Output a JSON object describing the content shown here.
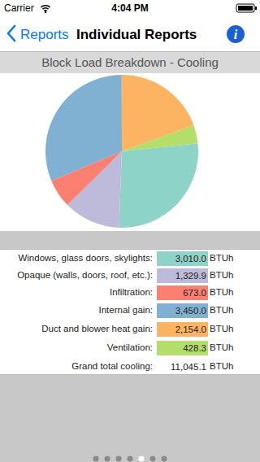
{
  "status_bar": {
    "carrier": "Carrier",
    "time": "4:04 PM"
  },
  "nav": {
    "back": "Reports",
    "title": "Individual Reports",
    "info": "i"
  },
  "chart_data": {
    "type": "pie",
    "title": "Block Load Breakdown - Cooling",
    "categories": [
      "Windows, glass doors, skylights:",
      "Opaque (walls, doors, roof, etc.):",
      "Infiltration:",
      "Internal gain:",
      "Duct and blower heat gain:",
      "Ventilation:"
    ],
    "values": [
      3010.0,
      1329.9,
      673.0,
      3450.0,
      2154.0,
      428.3
    ],
    "value_labels": [
      "3,010.0",
      "1,329.9",
      "673.0",
      "3,450.0",
      "2,154.0",
      "428.3"
    ],
    "unit": "BTUh",
    "colors": [
      "#8dd3c7",
      "#bebada",
      "#fb8072",
      "#80b1d3",
      "#fdb462",
      "#b3de69"
    ],
    "data_labels": true
  },
  "total": {
    "label": "Grand total cooling:",
    "value": 11045.1,
    "value_label": "11,045.1",
    "unit": "BTUh"
  },
  "page_control": {
    "pages": 7,
    "current": 5
  }
}
